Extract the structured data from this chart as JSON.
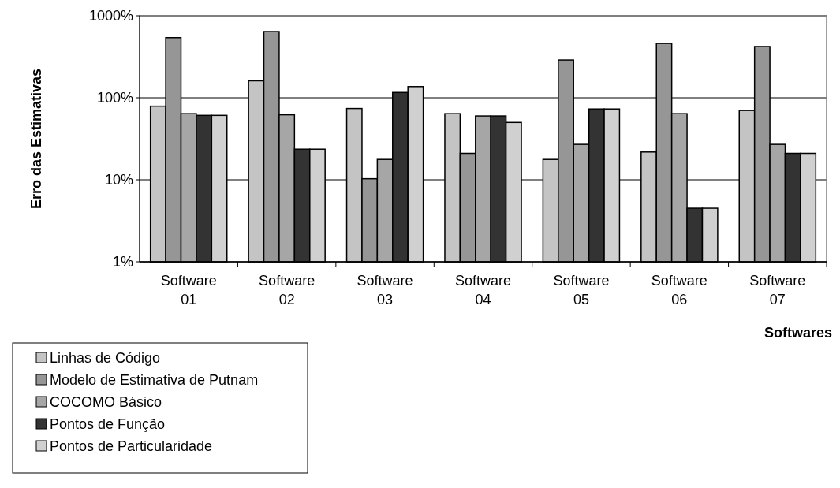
{
  "chart_data": {
    "type": "bar",
    "xlabel": "Softwares",
    "ylabel": "Erro das Estimativas",
    "categories": [
      "Software 01",
      "Software 02",
      "Software 03",
      "Software 04",
      "Software 05",
      "Software 06",
      "Software 07"
    ],
    "series": [
      {
        "name": "Linhas de Código",
        "color": "#c4c4c4",
        "values": [
          79,
          161,
          74,
          64,
          17.7,
          21.8,
          70
        ]
      },
      {
        "name": "Modelo de Estimativa de Putnam",
        "color": "#969696",
        "values": [
          541,
          642,
          10.3,
          21,
          289,
          460,
          422
        ]
      },
      {
        "name": "COCOMO Básico",
        "color": "#a6a6a6",
        "values": [
          64,
          62,
          17.7,
          60,
          27,
          64,
          27
        ]
      },
      {
        "name": "Pontos de Função",
        "color": "#333333",
        "values": [
          61,
          23.6,
          116,
          60,
          73,
          4.5,
          21
        ]
      },
      {
        "name": "Pontos de Particularidade",
        "color": "#d0d0d0",
        "values": [
          61,
          23.6,
          137,
          50,
          73,
          4.5,
          21
        ]
      }
    ],
    "log": true,
    "ylim": [
      1,
      1000
    ],
    "yticks": [
      {
        "value": 1,
        "label": "1%"
      },
      {
        "value": 10,
        "label": "10%"
      },
      {
        "value": 100,
        "label": "100%"
      },
      {
        "value": 1000,
        "label": "1000%"
      }
    ],
    "grid": "y",
    "legend": "bottom left"
  }
}
